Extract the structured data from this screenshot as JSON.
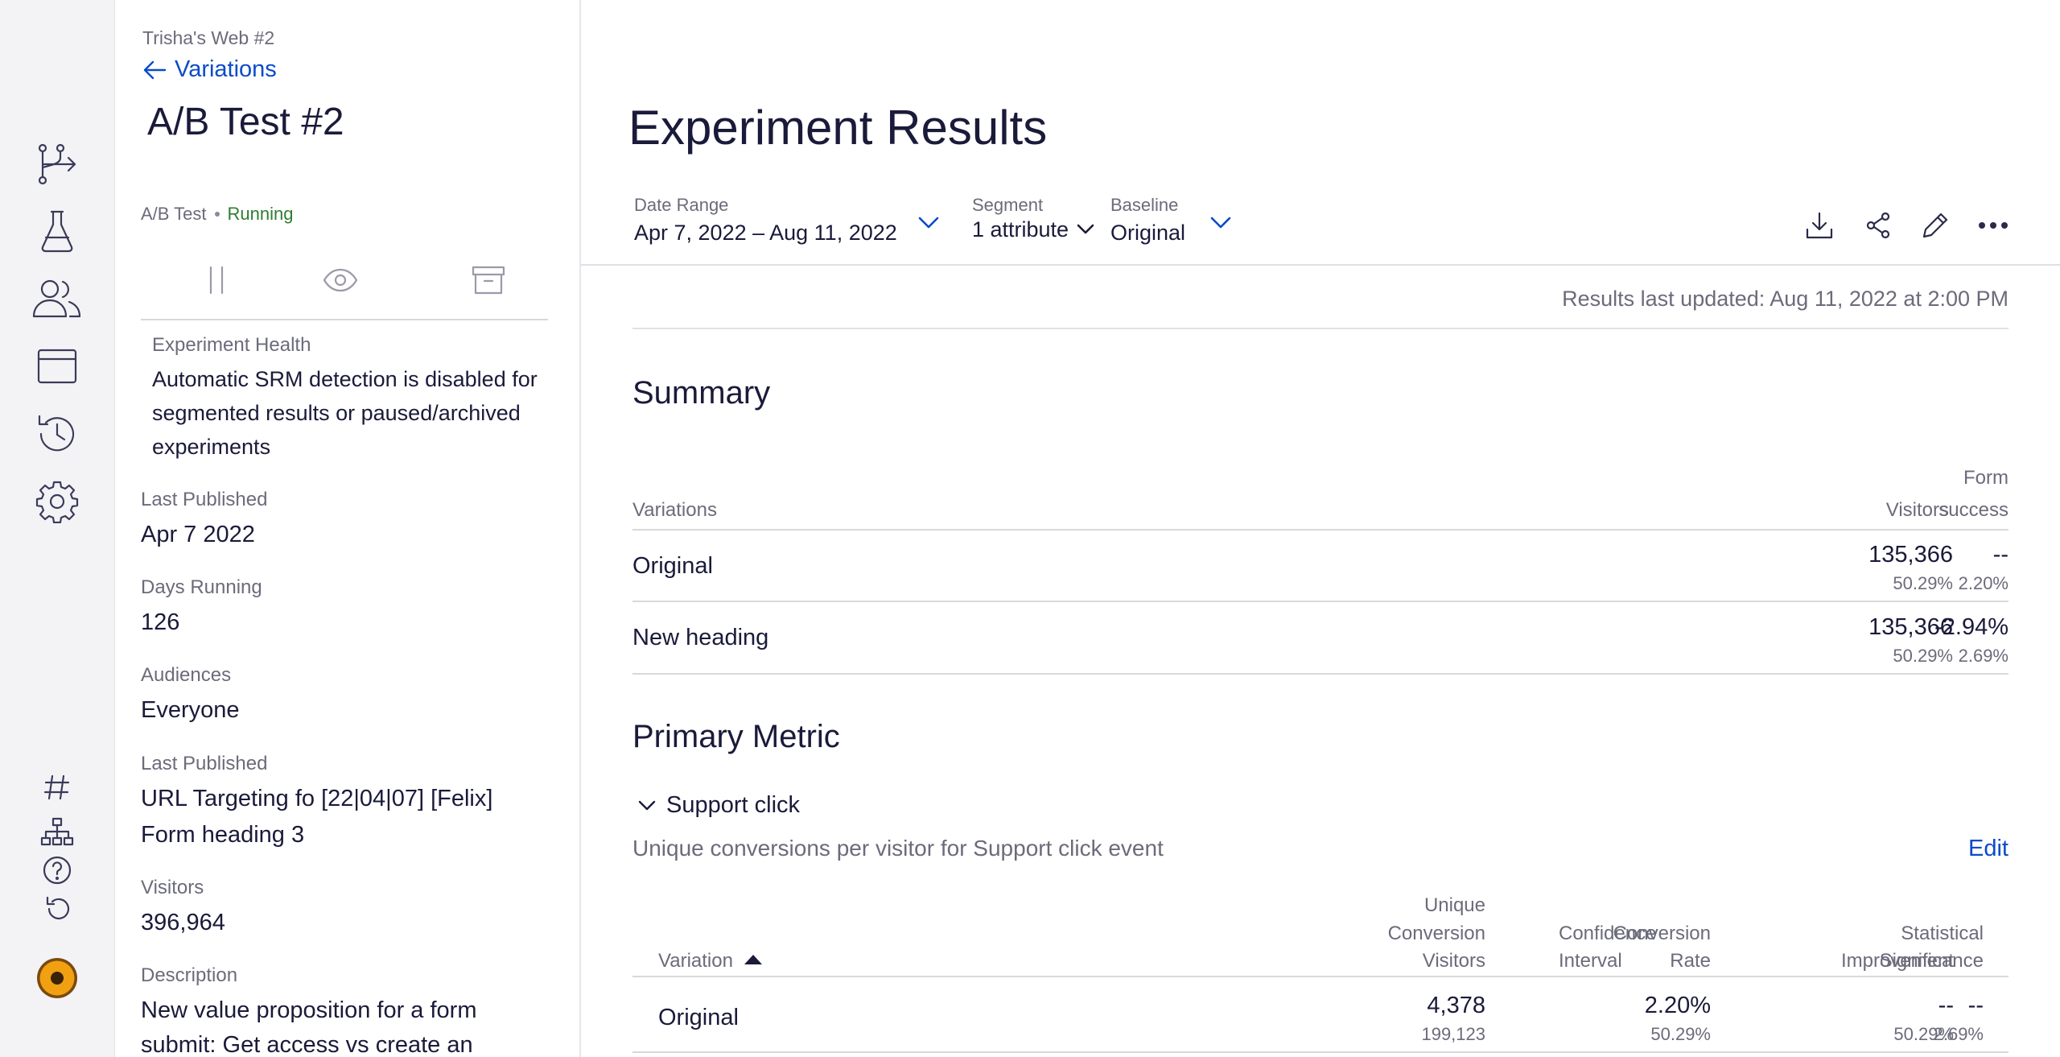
{
  "rail": {
    "icons": [
      "flow-icon",
      "flask-icon",
      "users-icon",
      "browser-window-icon",
      "history-icon",
      "gear-icon"
    ],
    "bottom_icons": [
      "hash-icon",
      "sitemap-icon",
      "help-icon",
      "undo-icon"
    ]
  },
  "details": {
    "project": "Trisha's Web #2",
    "back_label": "Variations",
    "title": "A/B Test #2",
    "type": "A/B Test",
    "status": "Running",
    "status_color": "#2e7d32",
    "health_label": "Experiment Health",
    "health_text": "Automatic SRM detection is disabled for segmented results or paused/archived experiments",
    "last_published_label": "Last Published",
    "last_published_value": "Apr 7  2022",
    "days_running_label": "Days Running",
    "days_running_value": "126",
    "audiences_label": "Audiences",
    "audiences_value": "Everyone",
    "targeting_label": "Last Published",
    "targeting_value_line1": "URL Targeting fo [22|04|07] [Felix]",
    "targeting_value_line2": "Form heading 3",
    "visitors_label": "Visitors",
    "visitors_value": "396,964",
    "description_label": "Description",
    "description_line1": "New value proposition for a form",
    "description_line2": "submit: Get access vs create an"
  },
  "main": {
    "title": "Experiment Results",
    "date_range_label": "Date Range",
    "date_range_value": "Apr 7, 2022 – Aug 11, 2022",
    "segment_label": "Segment",
    "segment_value": "1 attribute",
    "baseline_label": "Baseline",
    "baseline_value": "Original",
    "updated": "Results last updated: Aug 11, 2022 at 2:00 PM",
    "accent_color": "#0a4bc9"
  },
  "summary": {
    "title": "Summary",
    "col_variations": "Variations",
    "col_visitors": "Visitors",
    "col_form_line1": "Form",
    "col_form_line2": "success",
    "rows": [
      {
        "name": "Original",
        "visitors": "135,366",
        "visitors_pct": "50.29%",
        "form": "--",
        "form_sub": "2.20%"
      },
      {
        "name": "New heading",
        "visitors": "135,366",
        "visitors_pct": "50.29%",
        "form": "-2.94%",
        "form_sub": "2.69%"
      }
    ]
  },
  "primary": {
    "title": "Primary Metric",
    "metric_name": "Support click",
    "description": "Unique conversions per visitor for Support click event",
    "edit_label": "Edit",
    "col_variation": "Variation",
    "col_ucv_1": "Unique",
    "col_ucv_2": "Conversion",
    "col_ucv_3": "Visitors",
    "col_cr_1": "Conversion",
    "col_cr_2": "Rate",
    "col_improvement": "Improvement",
    "col_ci_1": "Confidence",
    "col_ci_2": "Interval",
    "col_ss_1": "Statistical",
    "col_ss_2": "Significance",
    "rows": [
      {
        "name": "Original",
        "ucv": "4,378",
        "ucv_sub": "199,123",
        "cr": "2.20%",
        "cr_sub": "50.29%",
        "imp": "--",
        "imp_sub": "50.29%",
        "ss": "--",
        "ss_sub": "2.69%"
      }
    ]
  }
}
